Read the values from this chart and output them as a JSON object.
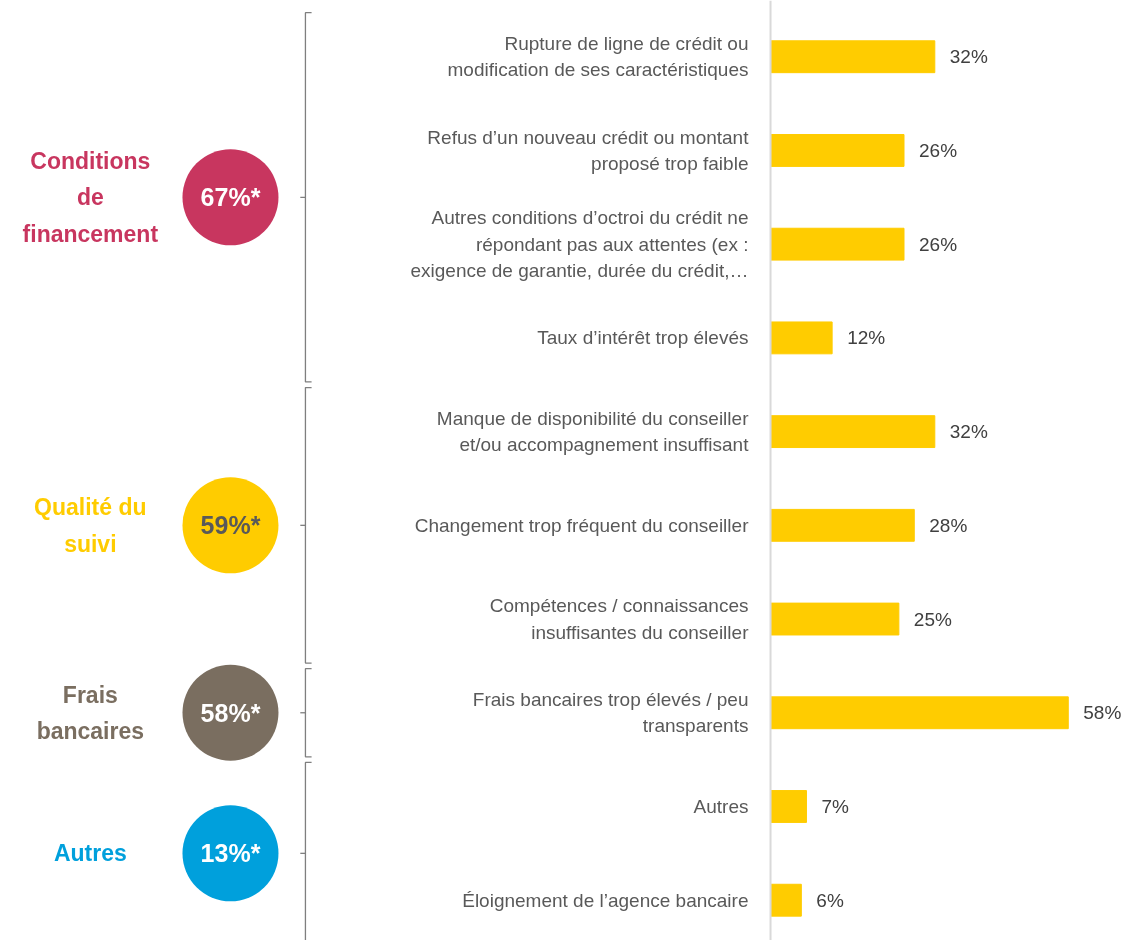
{
  "chart_data": {
    "type": "bar",
    "orientation": "horizontal",
    "color": "#ffcc00",
    "categories": [
      "Rupture de ligne de crédit ou\nmodification de ses caractéristiques",
      "Refus d’un nouveau crédit ou montant\nproposé trop faible",
      "Autres conditions d’octroi du crédit ne\nrépondant pas aux attentes (ex :\nexigence de garantie, durée du crédit,…",
      "Taux d’intérêt trop élevés",
      "Manque de disponibilité du conseiller\net/ou accompagnement insuffisant",
      "Changement trop fréquent du conseiller",
      "Compétences / connaissances\ninsuffisantes du conseiller",
      "Frais bancaires trop élevés / peu\ntransparents",
      "Autres",
      "Éloignement de l’agence bancaire"
    ],
    "values": [
      32,
      26,
      26,
      12,
      32,
      28,
      25,
      58,
      7,
      6
    ],
    "value_labels": [
      "32%",
      "26%",
      "26%",
      "12%",
      "32%",
      "28%",
      "25%",
      "58%",
      "7%",
      "6%"
    ],
    "annotations": [
      "Conditions\nde\nfinancement",
      "67%*",
      "Qualité du\nsuivi",
      "59%*",
      "Frais\nbancaires",
      "58%*",
      "Autres",
      "13%*"
    ]
  }
}
